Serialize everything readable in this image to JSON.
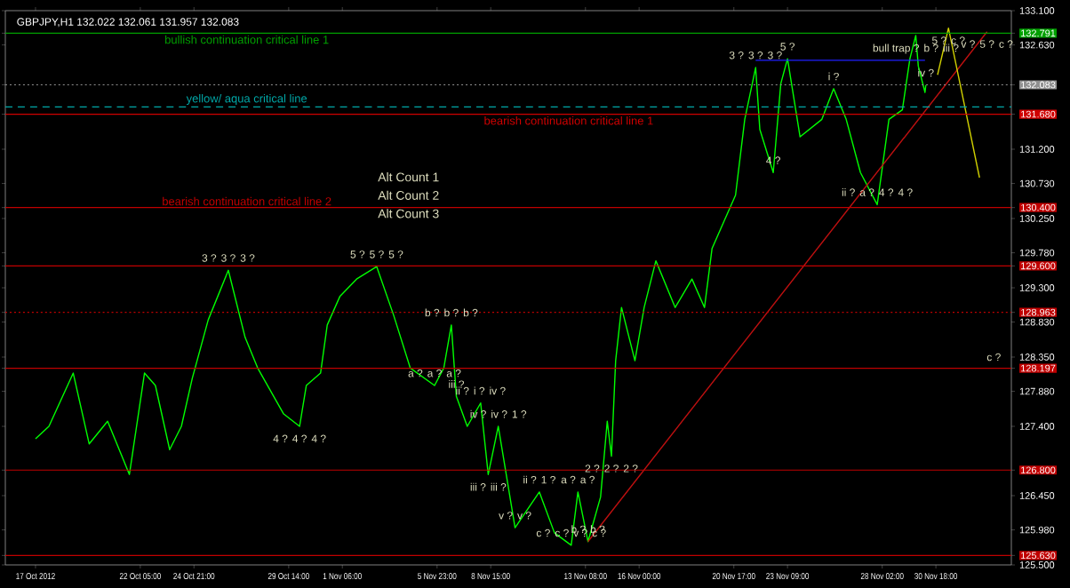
{
  "chart_data": {
    "type": "line",
    "title": "GBPJPY,H1  132.022 132.061 131.957 132.083",
    "series": [
      {
        "color": "#00ff00",
        "x": [
          "2012-10-17T00:00",
          "2012-10-17T16:00",
          "2012-10-18T21:00",
          "2012-10-19T16:00",
          "2012-10-20T14:00",
          "2012-10-21T16:00",
          "2012-10-22T10:00",
          "2012-10-22T23:00",
          "2012-10-23T16:00",
          "2012-10-24T06:00",
          "2012-10-24T19:00",
          "2012-10-25T14:00",
          "2012-10-26T14:00",
          "2012-10-27T10:00",
          "2012-10-28T01:00",
          "2012-10-29T08:00",
          "2012-10-30T03:00",
          "2012-10-30T11:00",
          "2012-10-31T04:00",
          "2012-10-31T12:00",
          "2012-11-01T03:00",
          "2012-11-01T23:00",
          "2012-11-02T23:00",
          "2012-11-03T19:00",
          "2012-11-04T15:00",
          "2012-11-05T20:00",
          "2012-11-06T07:00",
          "2012-11-06T16:00",
          "2012-11-06T22:00",
          "2012-11-07T11:00",
          "2012-11-08T03:00",
          "2012-11-08T12:00",
          "2012-11-09T00:00",
          "2012-11-09T20:00",
          "2012-11-11T01:00",
          "2012-11-11T19:00",
          "2012-11-12T15:00",
          "2012-11-12T23:00",
          "2012-11-13T11:00",
          "2012-11-14T02:00",
          "2012-11-14T10:00",
          "2012-11-14T15:00",
          "2012-11-14T20:00",
          "2012-11-15T03:00",
          "2012-11-15T19:00",
          "2012-11-16T06:00",
          "2012-11-16T20:00",
          "2012-11-17T19:00",
          "2012-11-18T15:00",
          "2012-11-19T06:00",
          "2012-11-19T15:00",
          "2012-11-20T19:00",
          "2012-11-21T06:00",
          "2012-11-21T19:00",
          "2012-11-22T00:00",
          "2012-11-22T16:00",
          "2012-11-23T01:00",
          "2012-11-23T09:00",
          "2012-11-24T00:00",
          "2012-11-25T02:00",
          "2012-11-25T16:00",
          "2012-11-26T07:00",
          "2012-11-27T00:00",
          "2012-11-27T20:00",
          "2012-11-28T10:00",
          "2012-11-29T02:00",
          "2012-11-29T11:00",
          "2012-11-29T18:00",
          "2012-11-29T21:00",
          "2012-11-30T05:00",
          "2012-11-30T06:00"
        ],
        "values": [
          127.23,
          127.4,
          128.13,
          127.16,
          127.47,
          126.74,
          128.13,
          127.96,
          127.08,
          127.4,
          128.06,
          128.86,
          129.54,
          128.62,
          128.2,
          127.57,
          127.4,
          127.96,
          128.13,
          128.79,
          129.18,
          129.42,
          129.59,
          128.93,
          128.2,
          127.96,
          128.2,
          128.79,
          127.81,
          127.4,
          127.72,
          126.74,
          127.4,
          126.01,
          126.5,
          125.94,
          125.77,
          126.5,
          125.82,
          126.43,
          127.47,
          126.99,
          128.3,
          129.03,
          128.3,
          129.03,
          129.67,
          129.03,
          129.42,
          129.03,
          129.84,
          130.57,
          131.61,
          132.32,
          131.47,
          130.88,
          132.1,
          132.44,
          131.37,
          131.61,
          132.03,
          131.61,
          130.88,
          130.44,
          131.61,
          131.74,
          132.44,
          132.76,
          132.34,
          131.98,
          132.08
        ]
      },
      {
        "color": "#c01010",
        "x": [
          "2012-11-13T11:00",
          "2012-12-03T07:00"
        ],
        "values": [
          125.82,
          132.81
        ]
      },
      {
        "color": "#2020ff",
        "x": [
          "2012-11-21T19:00",
          "2012-11-30T05:00"
        ],
        "values": [
          132.42,
          132.42
        ]
      },
      {
        "color": "#d0d000",
        "x": [
          "2012-11-30T20:00",
          "2012-12-01T09:00",
          "2012-12-02T22:00"
        ],
        "values": [
          132.22,
          132.86,
          130.81
        ]
      }
    ],
    "xlim": [
      "2012-10-15T12:00",
      "2012-12-04T12:00"
    ],
    "ylim": [
      125.5,
      133.1
    ],
    "xticks": [
      {
        "value": "2012-10-17T00:00",
        "label": "17 Oct 2012"
      },
      {
        "value": "2012-10-22T05:00",
        "label": "22 Oct 05:00"
      },
      {
        "value": "2012-10-24T21:00",
        "label": "24 Oct 21:00"
      },
      {
        "value": "2012-10-29T14:00",
        "label": "29 Oct 14:00"
      },
      {
        "value": "2012-11-01T06:00",
        "label": "1 Nov 06:00"
      },
      {
        "value": "2012-11-05T23:00",
        "label": "5 Nov 23:00"
      },
      {
        "value": "2012-11-08T15:00",
        "label": "8 Nov 15:00"
      },
      {
        "value": "2012-11-13T08:00",
        "label": "13 Nov 08:00"
      },
      {
        "value": "2012-11-16T00:00",
        "label": "16 Nov 00:00"
      },
      {
        "value": "2012-11-20T17:00",
        "label": "20 Nov 17:00"
      },
      {
        "value": "2012-11-23T09:00",
        "label": "23 Nov 09:00"
      },
      {
        "value": "2012-11-28T02:00",
        "label": "28 Nov 02:00"
      },
      {
        "value": "2012-11-30T18:00",
        "label": "30 Nov 18:00"
      }
    ],
    "yticks": [
      {
        "value": 125.5,
        "label": "125.500"
      },
      {
        "value": 125.63,
        "label": "125.630"
      },
      {
        "value": 125.98,
        "label": "125.980"
      },
      {
        "value": 126.45,
        "label": "126.450"
      },
      {
        "value": 126.8,
        "label": "126.800"
      },
      {
        "value": 127.4,
        "label": "127.400"
      },
      {
        "value": 127.88,
        "label": "127.880"
      },
      {
        "value": 128.197,
        "label": "128.197"
      },
      {
        "value": 128.35,
        "label": "128.350"
      },
      {
        "value": 128.83,
        "label": "128.830"
      },
      {
        "value": 128.963,
        "label": "128.963"
      },
      {
        "value": 129.3,
        "label": "129.300"
      },
      {
        "value": 129.6,
        "label": "129.600"
      },
      {
        "value": 129.78,
        "label": "129.780"
      },
      {
        "value": 130.25,
        "label": "130.250"
      },
      {
        "value": 130.4,
        "label": "130.400"
      },
      {
        "value": 130.73,
        "label": "130.730"
      },
      {
        "value": 131.2,
        "label": "131.200"
      },
      {
        "value": 131.68,
        "label": "131.680"
      },
      {
        "value": 132.083,
        "label": "132.083"
      },
      {
        "value": 132.63,
        "label": "132.630"
      },
      {
        "value": 132.791,
        "label": "132.791"
      },
      {
        "value": 133.1,
        "label": "133.100"
      }
    ],
    "ref_lines": [
      {
        "axis": "y",
        "value": 132.791,
        "label": "bullish continuation critical line 1",
        "color": "#00a000"
      },
      {
        "axis": "y",
        "value": 132.083,
        "color": "#909090",
        "line_style": "dotted"
      },
      {
        "axis": "y",
        "value": 131.78,
        "label": "yellow/ aqua critical line",
        "color": "#00a8a8",
        "line_style": "dashed"
      },
      {
        "axis": "y",
        "value": 131.68,
        "label": "bearish continuation critical line 1",
        "color": "#d00000"
      },
      {
        "axis": "y",
        "value": 130.4,
        "label": "bearish continuation critical line 2",
        "color": "#c00000"
      },
      {
        "axis": "y",
        "value": 129.6,
        "color": "#c00000"
      },
      {
        "axis": "y",
        "value": 128.963,
        "color": "#c00000",
        "line_style": "dotted"
      },
      {
        "axis": "y",
        "value": 128.197,
        "color": "#c00000"
      },
      {
        "axis": "y",
        "value": 126.8,
        "color": "#c00000"
      },
      {
        "axis": "y",
        "value": 125.63,
        "color": "#c00000"
      }
    ],
    "annotations": [
      "Alt Count 1",
      "Alt Count 2",
      "Alt Count 3",
      {
        "text": "3 ?",
        "x": "2012-10-26T14:00",
        "y": 129.54
      },
      {
        "text": "3 ?",
        "x": "2012-10-26T14:00",
        "y": 129.54
      },
      {
        "text": "3 ?",
        "x": "2012-10-26T14:00",
        "y": 129.54
      },
      {
        "text": "5 ?",
        "x": "2012-11-02T23:00",
        "y": 129.59
      },
      {
        "text": "5 ?",
        "x": "2012-11-02T23:00",
        "y": 129.59
      },
      {
        "text": "5 ?",
        "x": "2012-11-02T23:00",
        "y": 129.59
      },
      {
        "text": "4 ?",
        "x": "2012-10-30T03:00",
        "y": 127.4
      },
      {
        "text": "4 ?",
        "x": "2012-10-30T03:00",
        "y": 127.4
      },
      {
        "text": "4 ?",
        "x": "2012-10-30T03:00",
        "y": 127.4
      },
      {
        "text": "b ?",
        "x": "2012-11-06T16:00",
        "y": 128.79
      },
      {
        "text": "b ?",
        "x": "2012-11-06T16:00",
        "y": 128.79
      },
      {
        "text": "b ?",
        "x": "2012-11-06T16:00",
        "y": 128.79
      },
      {
        "text": "ii ?",
        "x": "2012-11-08T03:00",
        "y": 127.72
      },
      {
        "text": "i ?",
        "x": "2012-11-08T03:00",
        "y": 127.72
      },
      {
        "text": "iv ?",
        "x": "2012-11-08T03:00",
        "y": 127.72
      },
      {
        "text": "a ?",
        "x": "2012-11-05T20:00",
        "y": 127.96
      },
      {
        "text": "a ?",
        "x": "2012-11-05T20:00",
        "y": 127.96
      },
      {
        "text": "a ?",
        "x": "2012-11-05T20:00",
        "y": 127.96
      },
      {
        "text": "iii ?",
        "x": "2012-11-06T22:00",
        "y": 127.81
      },
      {
        "text": "iv ?",
        "x": "2012-11-09T00:00",
        "y": 127.4
      },
      {
        "text": "iv ?",
        "x": "2012-11-09T00:00",
        "y": 127.4
      },
      {
        "text": "1 ?",
        "x": "2012-11-09T00:00",
        "y": 127.4
      },
      {
        "text": "ii ?",
        "x": "2012-11-11T01:00",
        "y": 126.5
      },
      {
        "text": "1 ?",
        "x": "2012-11-11T01:00",
        "y": 126.5
      },
      {
        "text": "a ?",
        "x": "2012-11-12T23:00",
        "y": 126.5
      },
      {
        "text": "a ?",
        "x": "2012-11-12T23:00",
        "y": 126.5
      },
      {
        "text": "iii ?",
        "x": "2012-11-08T12:00",
        "y": 126.74
      },
      {
        "text": "iii ?",
        "x": "2012-11-08T12:00",
        "y": 126.74
      },
      {
        "text": "v ?",
        "x": "2012-11-09T20:00",
        "y": 126.01
      },
      {
        "text": "v ?",
        "x": "2012-11-09T20:00",
        "y": 126.01
      },
      {
        "text": "b ?",
        "x": "2012-11-13T11:00",
        "y": 125.82
      },
      {
        "text": "b ?",
        "x": "2012-11-13T11:00",
        "y": 125.82
      },
      {
        "text": "c ?",
        "x": "2012-11-12T15:00",
        "y": 125.77
      },
      {
        "text": "c ?",
        "x": "2012-11-12T15:00",
        "y": 125.77
      },
      {
        "text": "v ?",
        "x": "2012-11-12T15:00",
        "y": 125.77
      },
      {
        "text": "c ?",
        "x": "2012-11-12T15:00",
        "y": 125.77
      },
      {
        "text": "2 ?",
        "x": "2012-11-14T15:00",
        "y": 126.99
      },
      {
        "text": "2 ?",
        "x": "2012-11-14T15:00",
        "y": 126.99
      },
      {
        "text": "2 ?",
        "x": "2012-11-14T15:00",
        "y": 126.99
      },
      {
        "text": "3 ?",
        "x": "2012-11-21T19:00",
        "y": 132.32
      },
      {
        "text": "3 ?",
        "x": "2012-11-21T19:00",
        "y": 132.32
      },
      {
        "text": "3 ?",
        "x": "2012-11-21T19:00",
        "y": 132.32
      },
      {
        "text": "5 ?",
        "x": "2012-11-23T09:00",
        "y": 132.44
      },
      {
        "text": "bull trap ?",
        "x": "2012-11-29T18:00",
        "y": 132.76
      },
      {
        "text": "b ?",
        "x": "2012-11-29T18:00",
        "y": 132.76
      },
      {
        "text": "iii ?",
        "x": "2012-11-29T18:00",
        "y": 132.76
      },
      {
        "text": "5 ?",
        "x": "2012-12-01T09:00",
        "y": 132.86
      },
      {
        "text": "c ?",
        "x": "2012-12-01T09:00",
        "y": 132.86
      },
      {
        "text": "v ?",
        "x": "2012-12-03T07:00",
        "y": 132.81
      },
      {
        "text": "5 ?",
        "x": "2012-12-03T07:00",
        "y": 132.81
      },
      {
        "text": "c ?",
        "x": "2012-12-03T07:00",
        "y": 132.81
      },
      {
        "text": "i ?",
        "x": "2012-11-25T16:00",
        "y": 132.03
      },
      {
        "text": "ii ?",
        "x": "2012-11-27T20:00",
        "y": 130.44
      },
      {
        "text": "iv ?",
        "x": "2012-11-30T06:00",
        "y": 132.08
      },
      {
        "text": "4 ?",
        "x": "2012-11-22T16:00",
        "y": 130.88
      },
      {
        "text": "a ?",
        "x": "2012-11-27T20:00",
        "y": 130.44
      },
      {
        "text": "4 ?",
        "x": "2012-11-27T20:00",
        "y": 130.44
      },
      {
        "text": "4 ?",
        "x": "2012-11-27T20:00",
        "y": 130.44
      },
      "c ?"
    ]
  }
}
